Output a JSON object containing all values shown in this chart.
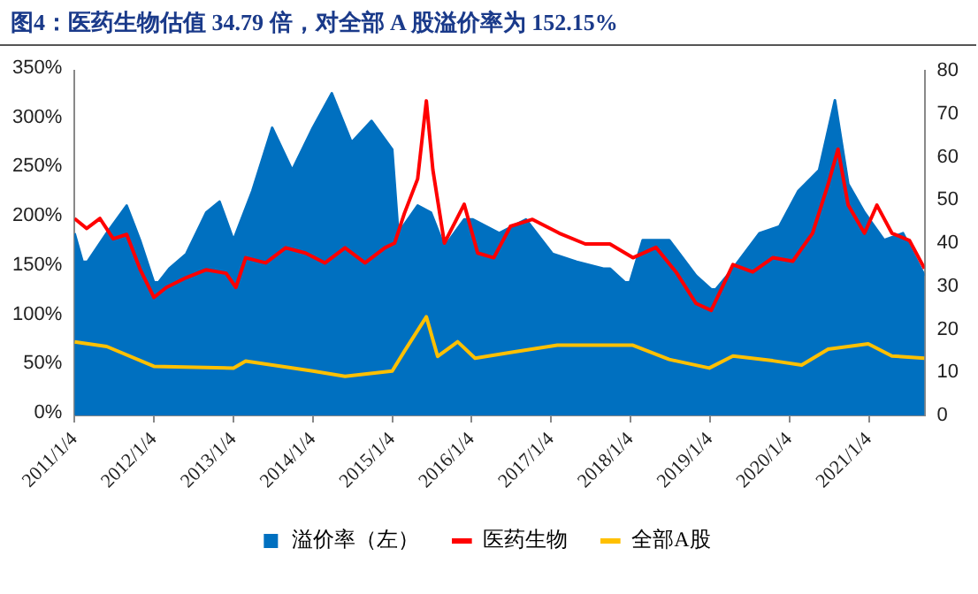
{
  "chart_data": {
    "type": "line",
    "title": "图4：医药生物估值 34.79 倍，对全部 A 股溢价率为 152.15%",
    "series": [
      {
        "name": "溢价率（左）",
        "type": "area",
        "color": "#0070c0",
        "x": [
          "2011-01-04",
          "2011-02-10",
          "2011-03-05",
          "2011-06-01",
          "2011-09-01",
          "2011-11-01",
          "2012-01-04",
          "2012-01-25",
          "2012-03-15",
          "2012-06-01",
          "2012-09-01",
          "2012-11-01",
          "2013-01-04",
          "2013-04-01",
          "2013-07-01",
          "2013-10-01",
          "2014-01-04",
          "2014-04-01",
          "2014-07-01",
          "2014-10-01",
          "2015-01-04",
          "2015-02-01",
          "2015-05-01",
          "2015-07-01",
          "2015-09-01",
          "2015-12-01",
          "2016-01-10",
          "2016-05-10",
          "2016-09-10",
          "2017-01-10",
          "2017-05-01",
          "2017-09-01",
          "2017-10-01",
          "2017-12-10",
          "2018-01-01",
          "2018-03-01",
          "2018-07-01",
          "2018-11-01",
          "2019-01-10",
          "2019-01-31",
          "2019-04-20",
          "2019-08-20",
          "2019-11-20",
          "2020-02-15",
          "2020-05-20",
          "2020-08-01",
          "2020-10-01",
          "2020-12-15",
          "2021-03-15",
          "2021-06-10",
          "2021-09-17"
        ],
        "values": [
          185,
          156,
          156,
          185,
          213,
          178,
          135,
          135,
          149,
          164,
          206,
          217,
          178,
          228,
          292,
          249,
          292,
          327,
          277,
          299,
          270,
          185,
          213,
          206,
          171,
          199,
          199,
          185,
          199,
          164,
          156,
          149,
          149,
          135,
          135,
          178,
          178,
          142,
          128,
          128,
          149,
          185,
          192,
          228,
          249,
          320,
          235,
          206,
          178,
          185,
          142
        ]
      },
      {
        "name": "医药生物",
        "axis": "y2",
        "color": "#ff0000",
        "x": [
          "2011-01-04",
          "2011-03-01",
          "2011-05-01",
          "2011-07-01",
          "2011-09-01",
          "2011-11-01",
          "2012-01-04",
          "2012-03-01",
          "2012-06-01",
          "2012-09-01",
          "2012-12-01",
          "2013-01-15",
          "2013-03-01",
          "2013-06-01",
          "2013-09-01",
          "2013-12-01",
          "2014-03-01",
          "2014-06-01",
          "2014-09-01",
          "2014-12-01",
          "2015-01-15",
          "2015-03-01",
          "2015-05-01",
          "2015-06-10",
          "2015-07-10",
          "2015-09-01",
          "2015-12-01",
          "2016-02-01",
          "2016-04-15",
          "2016-07-01",
          "2016-10-10",
          "2017-02-10",
          "2017-06-10",
          "2017-10-01",
          "2018-01-15",
          "2018-05-01",
          "2018-08-01",
          "2018-11-01",
          "2019-01-10",
          "2019-04-20",
          "2019-07-20",
          "2019-10-20",
          "2020-01-20",
          "2020-04-20",
          "2020-07-01",
          "2020-08-15",
          "2020-10-01",
          "2020-12-15",
          "2021-02-10",
          "2021-04-20",
          "2021-07-10",
          "2021-09-17"
        ],
        "values": [
          45.7,
          43.4,
          45.7,
          41,
          42,
          34,
          27.4,
          29.7,
          32,
          33.8,
          33,
          29.7,
          36.6,
          35.4,
          38.9,
          37.7,
          35.4,
          38.9,
          35.4,
          38.9,
          40,
          46.9,
          54.9,
          73,
          57,
          40,
          49,
          37.7,
          36.6,
          43.9,
          45.5,
          42.3,
          39.8,
          39.8,
          36.6,
          39,
          33.3,
          26,
          24.4,
          35,
          33.3,
          36.6,
          35.8,
          42.3,
          53.7,
          61.8,
          48.8,
          42.3,
          48.8,
          42.3,
          40.6,
          34.1
        ]
      },
      {
        "name": "全部A股",
        "axis": "y2",
        "color": "#ffc000",
        "x": [
          "2011-01-04",
          "2011-06-01",
          "2012-01-04",
          "2013-01-04",
          "2013-03-01",
          "2014-01-04",
          "2014-06-01",
          "2015-01-04",
          "2015-03-01",
          "2015-06-10",
          "2015-08-01",
          "2015-11-01",
          "2016-01-20",
          "2016-07-01",
          "2017-02-01",
          "2017-07-01",
          "2018-01-15",
          "2018-07-01",
          "2019-01-01",
          "2019-04-20",
          "2019-10-20",
          "2020-03-01",
          "2020-07-01",
          "2021-01-01",
          "2021-04-20",
          "2021-09-17"
        ],
        "values": [
          17.1,
          16,
          11.4,
          11,
          12.6,
          10.3,
          9.1,
          10.3,
          14.9,
          22.9,
          13.7,
          17.1,
          13.3,
          14.6,
          16.3,
          16.3,
          16.3,
          13,
          11,
          13.8,
          12.7,
          11.7,
          15.4,
          16.6,
          13.8,
          13.3
        ]
      }
    ],
    "xlim": [
      "2011-01-04",
      "2021-09-17"
    ],
    "xticks": [
      {
        "value": "2011-01-04",
        "label": "2011/1/4"
      },
      {
        "value": "2012-01-04",
        "label": "2012/1/4"
      },
      {
        "value": "2013-01-04",
        "label": "2013/1/4"
      },
      {
        "value": "2014-01-04",
        "label": "2014/1/4"
      },
      {
        "value": "2015-01-04",
        "label": "2015/1/4"
      },
      {
        "value": "2016-01-04",
        "label": "2016/1/4"
      },
      {
        "value": "2017-01-04",
        "label": "2017/1/4"
      },
      {
        "value": "2018-01-04",
        "label": "2018/1/4"
      },
      {
        "value": "2019-01-04",
        "label": "2019/1/4"
      },
      {
        "value": "2020-01-04",
        "label": "2020/1/4"
      },
      {
        "value": "2021-01-04",
        "label": "2021/1/4"
      }
    ],
    "ylim": [
      0,
      350
    ],
    "yticks": [
      {
        "value": 0,
        "label": "0%"
      },
      {
        "value": 50,
        "label": "50%"
      },
      {
        "value": 100,
        "label": "100%"
      },
      {
        "value": 150,
        "label": "150%"
      },
      {
        "value": 200,
        "label": "200%"
      },
      {
        "value": 250,
        "label": "250%"
      },
      {
        "value": 300,
        "label": "300%"
      },
      {
        "value": 350,
        "label": "350%"
      }
    ],
    "y2lim": [
      0,
      80
    ],
    "y2ticks": [
      0,
      10,
      20,
      30,
      40,
      50,
      60,
      70,
      80
    ],
    "grid": false,
    "legend": "bottom",
    "marker": "none",
    "line_style": "solid"
  }
}
